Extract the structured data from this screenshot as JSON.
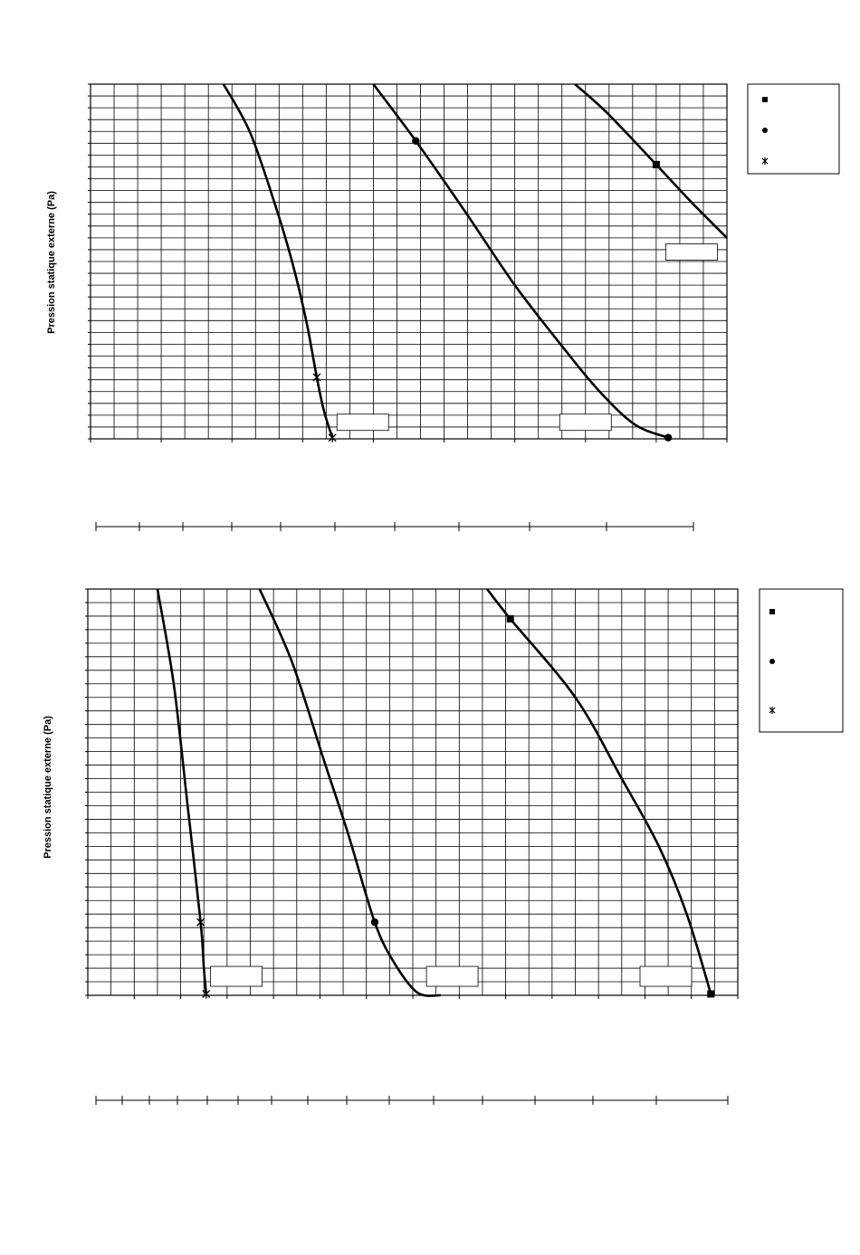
{
  "chart_data": [
    {
      "type": "line",
      "ylabel": "Pression statique externe (Pa)",
      "xlim": [
        0,
        9
      ],
      "ylim": [
        0,
        15
      ],
      "x_ticks": 9,
      "y_ticks": 15,
      "x_minor_per_tick": 3,
      "y_minor_per_tick": 2,
      "legend": {
        "position": "right",
        "markers": [
          "square",
          "circle",
          "star"
        ]
      },
      "label_boxes": [
        {
          "near": "square",
          "x": 8.5,
          "y": 7.9
        },
        {
          "near": "circle",
          "x": 7.0,
          "y": 0.7
        },
        {
          "near": "star",
          "x": 3.85,
          "y": 0.7
        }
      ],
      "series": [
        {
          "marker": "square",
          "marker_points": [
            [
              8.0,
              11.6
            ]
          ],
          "values": [
            [
              6.85,
              15.0
            ],
            [
              7.3,
              13.8
            ],
            [
              8.0,
              11.6
            ],
            [
              8.5,
              10.0
            ],
            [
              9.0,
              8.5
            ]
          ]
        },
        {
          "marker": "circle",
          "marker_points": [
            [
              4.6,
              12.6
            ],
            [
              8.17,
              0.05
            ]
          ],
          "values": [
            [
              4.0,
              15.0
            ],
            [
              4.6,
              12.6
            ],
            [
              5.3,
              9.6
            ],
            [
              6.0,
              6.5
            ],
            [
              6.7,
              3.8
            ],
            [
              7.2,
              2.0
            ],
            [
              7.7,
              0.6
            ],
            [
              8.17,
              0.05
            ]
          ]
        },
        {
          "marker": "star",
          "marker_points": [
            [
              3.2,
              2.6
            ],
            [
              3.42,
              0.05
            ]
          ],
          "values": [
            [
              1.88,
              15.0
            ],
            [
              2.25,
              13.0
            ],
            [
              2.6,
              10.0
            ],
            [
              2.85,
              7.5
            ],
            [
              3.05,
              5.0
            ],
            [
              3.2,
              2.6
            ],
            [
              3.3,
              1.2
            ],
            [
              3.42,
              0.05
            ]
          ]
        }
      ]
    },
    {
      "type": "line",
      "ylabel": "Pression statique externe (Pa)",
      "xlim": [
        0,
        14
      ],
      "ylim": [
        0,
        15
      ],
      "x_ticks": 14,
      "y_ticks": 15,
      "x_minor_per_tick": 2,
      "y_minor_per_tick": 2,
      "legend": {
        "position": "right",
        "markers": [
          "square",
          "circle",
          "star"
        ]
      },
      "label_boxes": [
        {
          "near": "star",
          "x": 3.2,
          "y": 0.7
        },
        {
          "near": "circle",
          "x": 7.85,
          "y": 0.7
        },
        {
          "near": "square",
          "x": 12.45,
          "y": 0.7
        }
      ],
      "series": [
        {
          "marker": "square",
          "marker_points": [
            [
              9.1,
              13.9
            ],
            [
              13.42,
              0.05
            ]
          ],
          "values": [
            [
              8.6,
              15.0
            ],
            [
              9.1,
              13.9
            ],
            [
              10.5,
              11.0
            ],
            [
              11.5,
              8.0
            ],
            [
              12.3,
              5.5
            ],
            [
              12.9,
              3.0
            ],
            [
              13.42,
              0.05
            ]
          ]
        },
        {
          "marker": "circle",
          "marker_points": [
            [
              6.18,
              2.7
            ]
          ],
          "values": [
            [
              3.7,
              15.0
            ],
            [
              4.4,
              12.3
            ],
            [
              5.1,
              8.6
            ],
            [
              5.6,
              6.0
            ],
            [
              6.18,
              2.7
            ],
            [
              6.6,
              1.2
            ],
            [
              7.1,
              0.1
            ],
            [
              7.6,
              0.0
            ]
          ]
        },
        {
          "marker": "star",
          "marker_points": [
            [
              2.43,
              2.7
            ],
            [
              2.55,
              0.05
            ]
          ],
          "values": [
            [
              1.5,
              15.0
            ],
            [
              1.85,
              11.5
            ],
            [
              2.15,
              7.0
            ],
            [
              2.43,
              2.7
            ],
            [
              2.5,
              1.0
            ],
            [
              2.55,
              0.05
            ]
          ]
        }
      ]
    }
  ]
}
